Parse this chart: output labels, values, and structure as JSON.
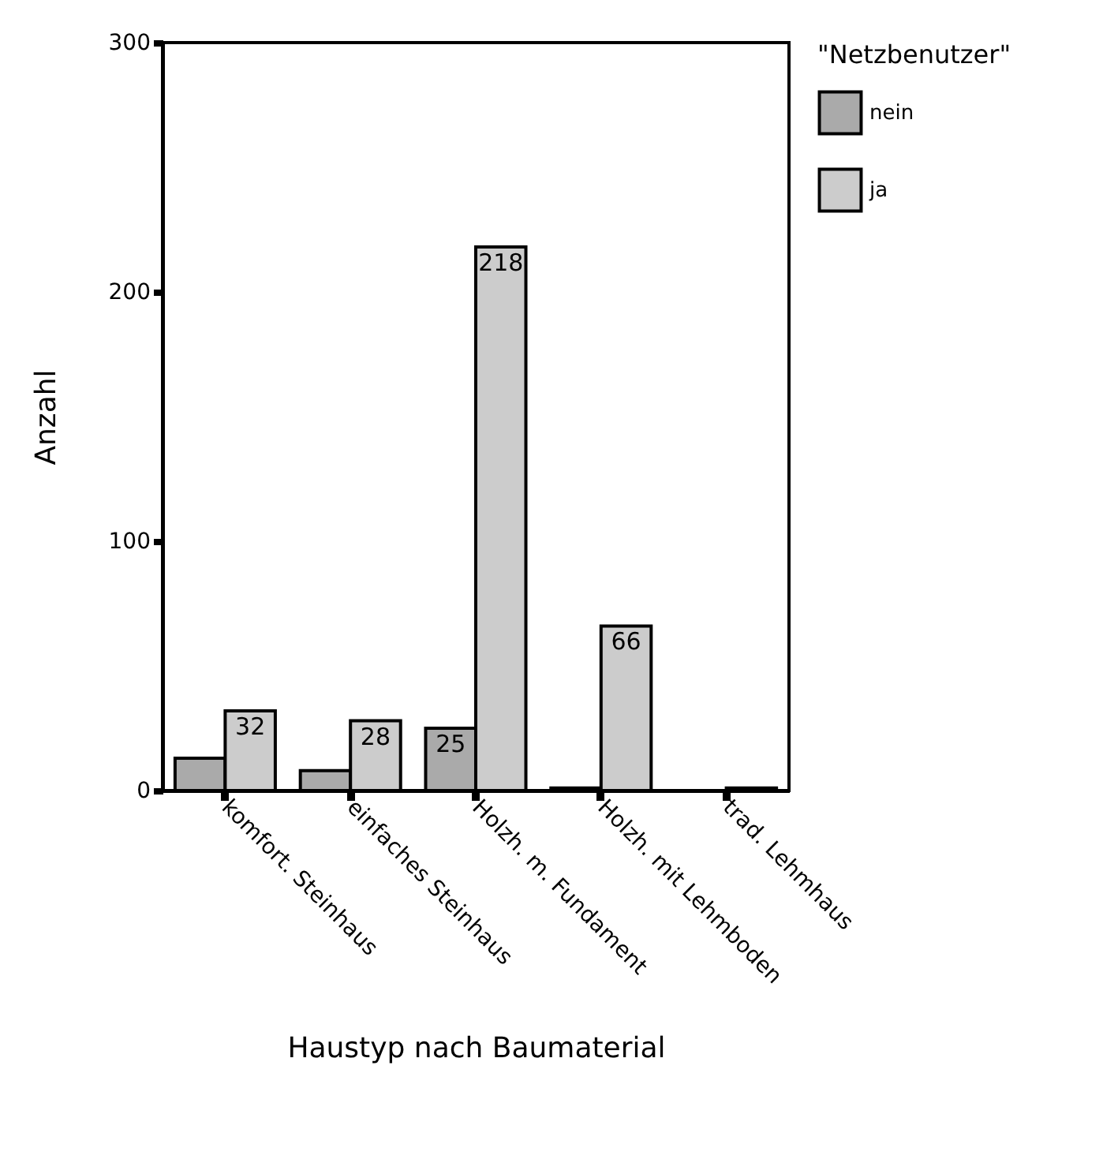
{
  "chart_data": {
    "type": "bar",
    "xlabel": "Haustyp nach Baumaterial",
    "ylabel": "Anzahl",
    "legend_title": "\"Netzbenutzer\"",
    "legend": "right",
    "categories": [
      "komfort. Steinhaus",
      "einfaches Steinhaus",
      "Holzh. m. Fundament",
      "Holzh. mit Lehmboden",
      "trad. Lehmhaus"
    ],
    "series": [
      {
        "name": "nein",
        "color": "#aaaaaa",
        "values": [
          13,
          8,
          25,
          1,
          null
        ],
        "value_labels": [
          null,
          null,
          "25",
          null,
          null
        ]
      },
      {
        "name": "ja",
        "color": "#cccccc",
        "values": [
          32,
          28,
          218,
          66,
          1
        ],
        "value_labels": [
          "32",
          "28",
          "218",
          "66",
          null
        ]
      }
    ],
    "ylim": [
      0,
      300
    ],
    "yticks": [
      0,
      100,
      200,
      300
    ],
    "grid": false
  }
}
